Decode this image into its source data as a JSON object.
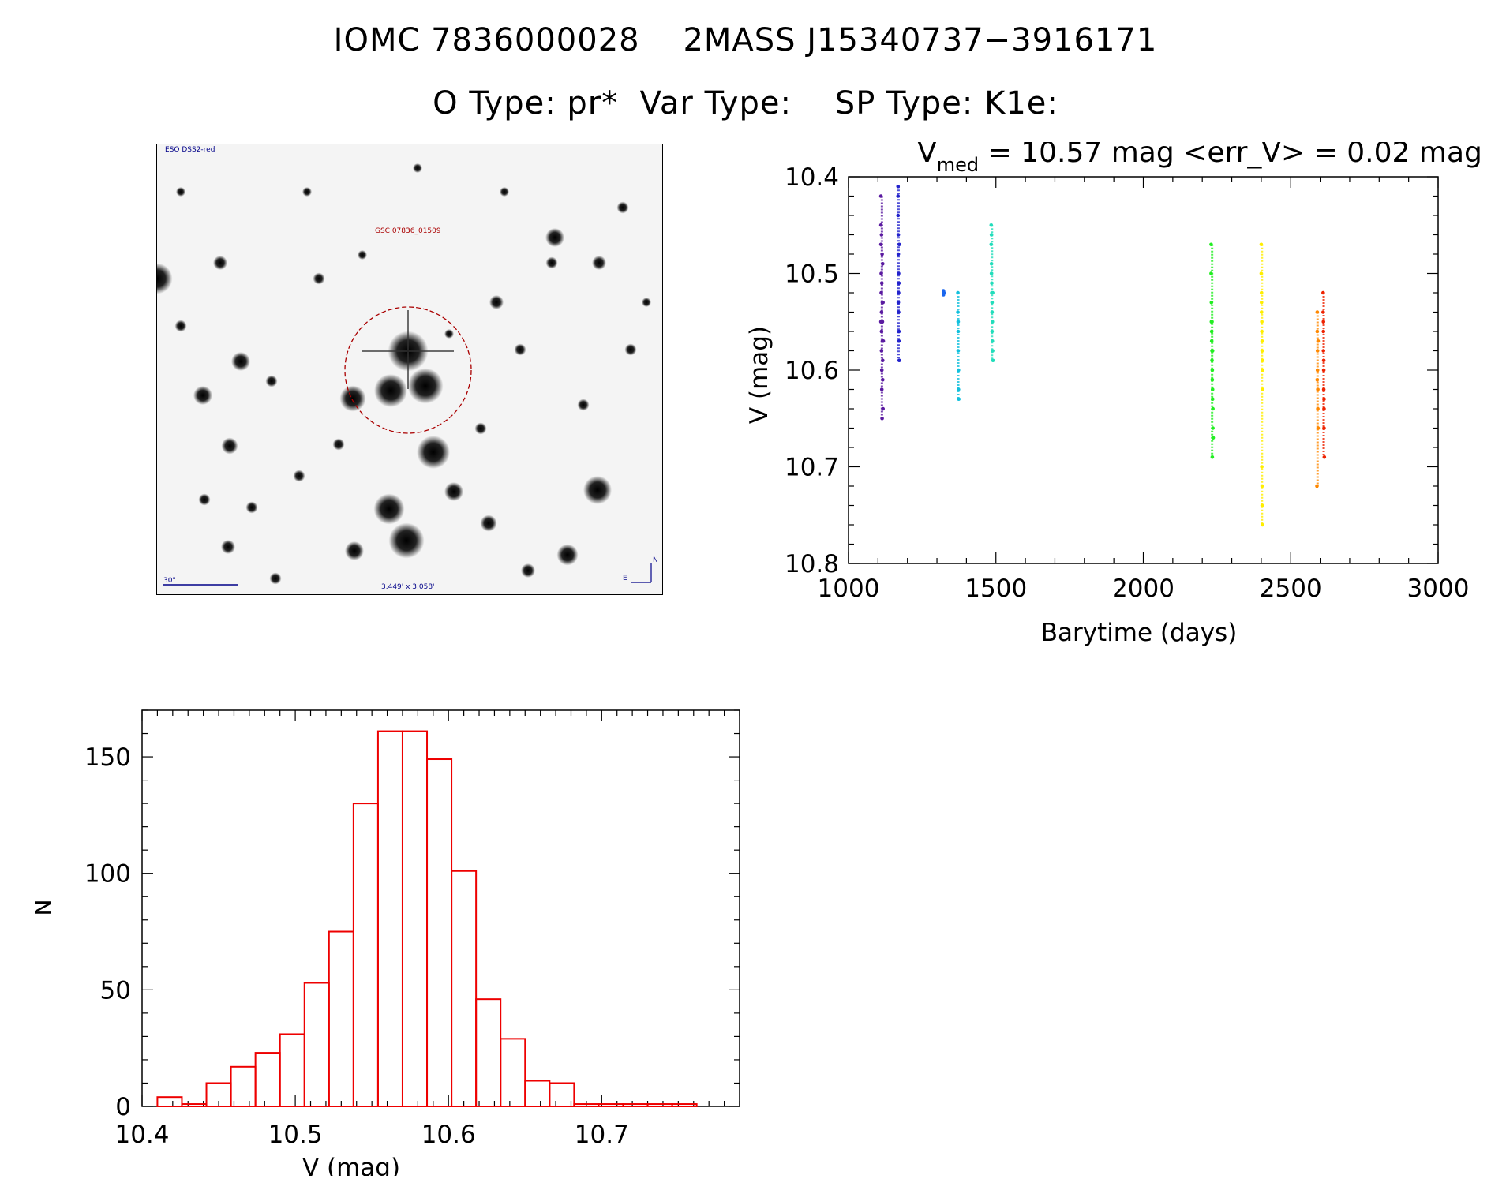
{
  "header": {
    "line1": "IOMC 7836000028    2MASS J15340737−3916171",
    "line2": "O Type: pr*  Var Type:    SP Type: K1e:"
  },
  "sky_image": {
    "survey_label": "ESO DSS2-red",
    "star_label": "GSC 07836_01509",
    "scale_label": "30\"",
    "size_label": "3.449' x 3.058'",
    "north_label": "N",
    "east_label": "E",
    "colors": {
      "circle": "#aa0000",
      "labels": "#000088",
      "star_label": "#aa0000"
    }
  },
  "chart_data": [
    {
      "type": "scatter",
      "title_prefix": "V",
      "title_sub": "med",
      "title_rest": " = 10.57 mag <err_V> = 0.02 mag",
      "xlabel": "Barytime (days)",
      "ylabel": "V (mag)",
      "xlim": [
        1000,
        3000
      ],
      "ylim": [
        10.8,
        10.4
      ],
      "xticks": [
        1000,
        1500,
        2000,
        2500,
        3000
      ],
      "xtick_labels": [
        "1000",
        "1500",
        "2000",
        "2500",
        "3000"
      ],
      "yticks": [
        10.4,
        10.5,
        10.6,
        10.7,
        10.8
      ],
      "ytick_labels": [
        "10.4",
        "10.5",
        "10.6",
        "10.7",
        "10.8"
      ],
      "series": [
        {
          "name": "g1",
          "color": "#5a1aa0",
          "points": [
            [
              1110,
              10.42
            ],
            [
              1110,
              10.45
            ],
            [
              1110,
              10.47
            ],
            [
              1111,
              10.5
            ],
            [
              1111,
              10.52
            ],
            [
              1112,
              10.54
            ],
            [
              1112,
              10.56
            ],
            [
              1112,
              10.58
            ],
            [
              1113,
              10.6
            ],
            [
              1113,
              10.62
            ],
            [
              1114,
              10.65
            ],
            [
              1115,
              10.53
            ],
            [
              1115,
              10.55
            ],
            [
              1115,
              10.57
            ],
            [
              1116,
              10.59
            ],
            [
              1116,
              10.61
            ],
            [
              1117,
              10.64
            ],
            [
              1113,
              10.51
            ],
            [
              1114,
              10.48
            ],
            [
              1112,
              10.46
            ],
            [
              1116,
              10.49
            ],
            [
              1110,
              10.55
            ],
            [
              1118,
              10.57
            ],
            [
              1117,
              10.53
            ]
          ]
        },
        {
          "name": "g2",
          "color": "#2222cc",
          "points": [
            [
              1168,
              10.41
            ],
            [
              1168,
              10.42
            ],
            [
              1168,
              10.44
            ],
            [
              1169,
              10.46
            ],
            [
              1169,
              10.48
            ],
            [
              1170,
              10.5
            ],
            [
              1170,
              10.52
            ],
            [
              1170,
              10.54
            ],
            [
              1171,
              10.56
            ],
            [
              1171,
              10.57
            ],
            [
              1172,
              10.59
            ],
            [
              1169,
              10.53
            ],
            [
              1171,
              10.51
            ],
            [
              1172,
              10.47
            ]
          ]
        },
        {
          "name": "g3",
          "color": "#1a66ee",
          "points": [
            [
              1322,
              10.52
            ],
            [
              1322,
              10.518
            ],
            [
              1322,
              10.522
            ],
            [
              1324,
              10.52
            ]
          ]
        },
        {
          "name": "g4",
          "color": "#11c0dd",
          "points": [
            [
              1371,
              10.52
            ],
            [
              1371,
              10.54
            ],
            [
              1372,
              10.56
            ],
            [
              1372,
              10.58
            ],
            [
              1373,
              10.6
            ],
            [
              1373,
              10.62
            ],
            [
              1374,
              10.63
            ],
            [
              1372,
              10.55
            ]
          ]
        },
        {
          "name": "g5",
          "color": "#22ddbb",
          "points": [
            [
              1484,
              10.45
            ],
            [
              1484,
              10.47
            ],
            [
              1485,
              10.49
            ],
            [
              1485,
              10.5
            ],
            [
              1486,
              10.51
            ],
            [
              1486,
              10.52
            ],
            [
              1487,
              10.53
            ],
            [
              1487,
              10.54
            ],
            [
              1488,
              10.55
            ],
            [
              1488,
              10.57
            ],
            [
              1489,
              10.58
            ],
            [
              1490,
              10.59
            ],
            [
              1485,
              10.46
            ],
            [
              1489,
              10.52
            ],
            [
              1487,
              10.56
            ]
          ]
        },
        {
          "name": "g6",
          "color": "#22ee22",
          "points": [
            [
              2230,
              10.47
            ],
            [
              2230,
              10.5
            ],
            [
              2231,
              10.53
            ],
            [
              2231,
              10.55
            ],
            [
              2232,
              10.56
            ],
            [
              2232,
              10.57
            ],
            [
              2233,
              10.58
            ],
            [
              2233,
              10.59
            ],
            [
              2234,
              10.6
            ],
            [
              2234,
              10.61
            ],
            [
              2235,
              10.62
            ],
            [
              2235,
              10.63
            ],
            [
              2236,
              10.64
            ],
            [
              2236,
              10.66
            ],
            [
              2237,
              10.67
            ],
            [
              2234,
              10.69
            ],
            [
              2233,
              10.55
            ],
            [
              2235,
              10.58
            ]
          ]
        },
        {
          "name": "g7",
          "color": "#ffee00",
          "points": [
            [
              2400,
              10.47
            ],
            [
              2400,
              10.5
            ],
            [
              2401,
              10.52
            ],
            [
              2401,
              10.54
            ],
            [
              2402,
              10.55
            ],
            [
              2402,
              10.56
            ],
            [
              2403,
              10.57
            ],
            [
              2403,
              10.58
            ],
            [
              2404,
              10.59
            ],
            [
              2404,
              10.6
            ],
            [
              2405,
              10.62
            ],
            [
              2402,
              10.7
            ],
            [
              2403,
              10.72
            ],
            [
              2403,
              10.74
            ],
            [
              2404,
              10.76
            ],
            [
              2401,
              10.53
            ]
          ]
        },
        {
          "name": "g8",
          "color": "#ff8800",
          "points": [
            [
              2590,
              10.54
            ],
            [
              2590,
              10.56
            ],
            [
              2591,
              10.58
            ],
            [
              2591,
              10.6
            ],
            [
              2592,
              10.62
            ],
            [
              2592,
              10.64
            ],
            [
              2593,
              10.66
            ],
            [
              2589,
              10.72
            ],
            [
              2593,
              10.57
            ],
            [
              2590,
              10.61
            ]
          ]
        },
        {
          "name": "g9",
          "color": "#ee2200",
          "points": [
            [
              2610,
              10.52
            ],
            [
              2610,
              10.54
            ],
            [
              2611,
              10.56
            ],
            [
              2611,
              10.58
            ],
            [
              2612,
              10.6
            ],
            [
              2612,
              10.62
            ],
            [
              2613,
              10.64
            ],
            [
              2613,
              10.66
            ],
            [
              2614,
              10.69
            ],
            [
              2611,
              10.55
            ],
            [
              2612,
              10.59
            ],
            [
              2613,
              10.63
            ]
          ]
        }
      ]
    },
    {
      "type": "bar",
      "style": "histogram",
      "xlabel": "V (mag)",
      "ylabel": "N",
      "xlim": [
        10.4,
        10.79
      ],
      "ylim": [
        0,
        170
      ],
      "xticks": [
        10.4,
        10.5,
        10.6,
        10.7
      ],
      "xtick_labels": [
        "10.4",
        "10.5",
        "10.6",
        "10.7"
      ],
      "yticks": [
        0,
        50,
        100,
        150
      ],
      "ytick_labels": [
        "0",
        "50",
        "100",
        "150"
      ],
      "color": "#ee0000",
      "bin_edges": [
        10.41,
        10.426,
        10.442,
        10.458,
        10.474,
        10.49,
        10.506,
        10.522,
        10.538,
        10.554,
        10.57,
        10.586,
        10.602,
        10.618,
        10.634,
        10.65,
        10.666,
        10.682,
        10.698,
        10.714,
        10.73,
        10.746,
        10.762
      ],
      "values": [
        4,
        1,
        10,
        17,
        23,
        31,
        53,
        75,
        130,
        161,
        161,
        149,
        101,
        46,
        29,
        11,
        10,
        1,
        1,
        1,
        1,
        1
      ]
    }
  ]
}
